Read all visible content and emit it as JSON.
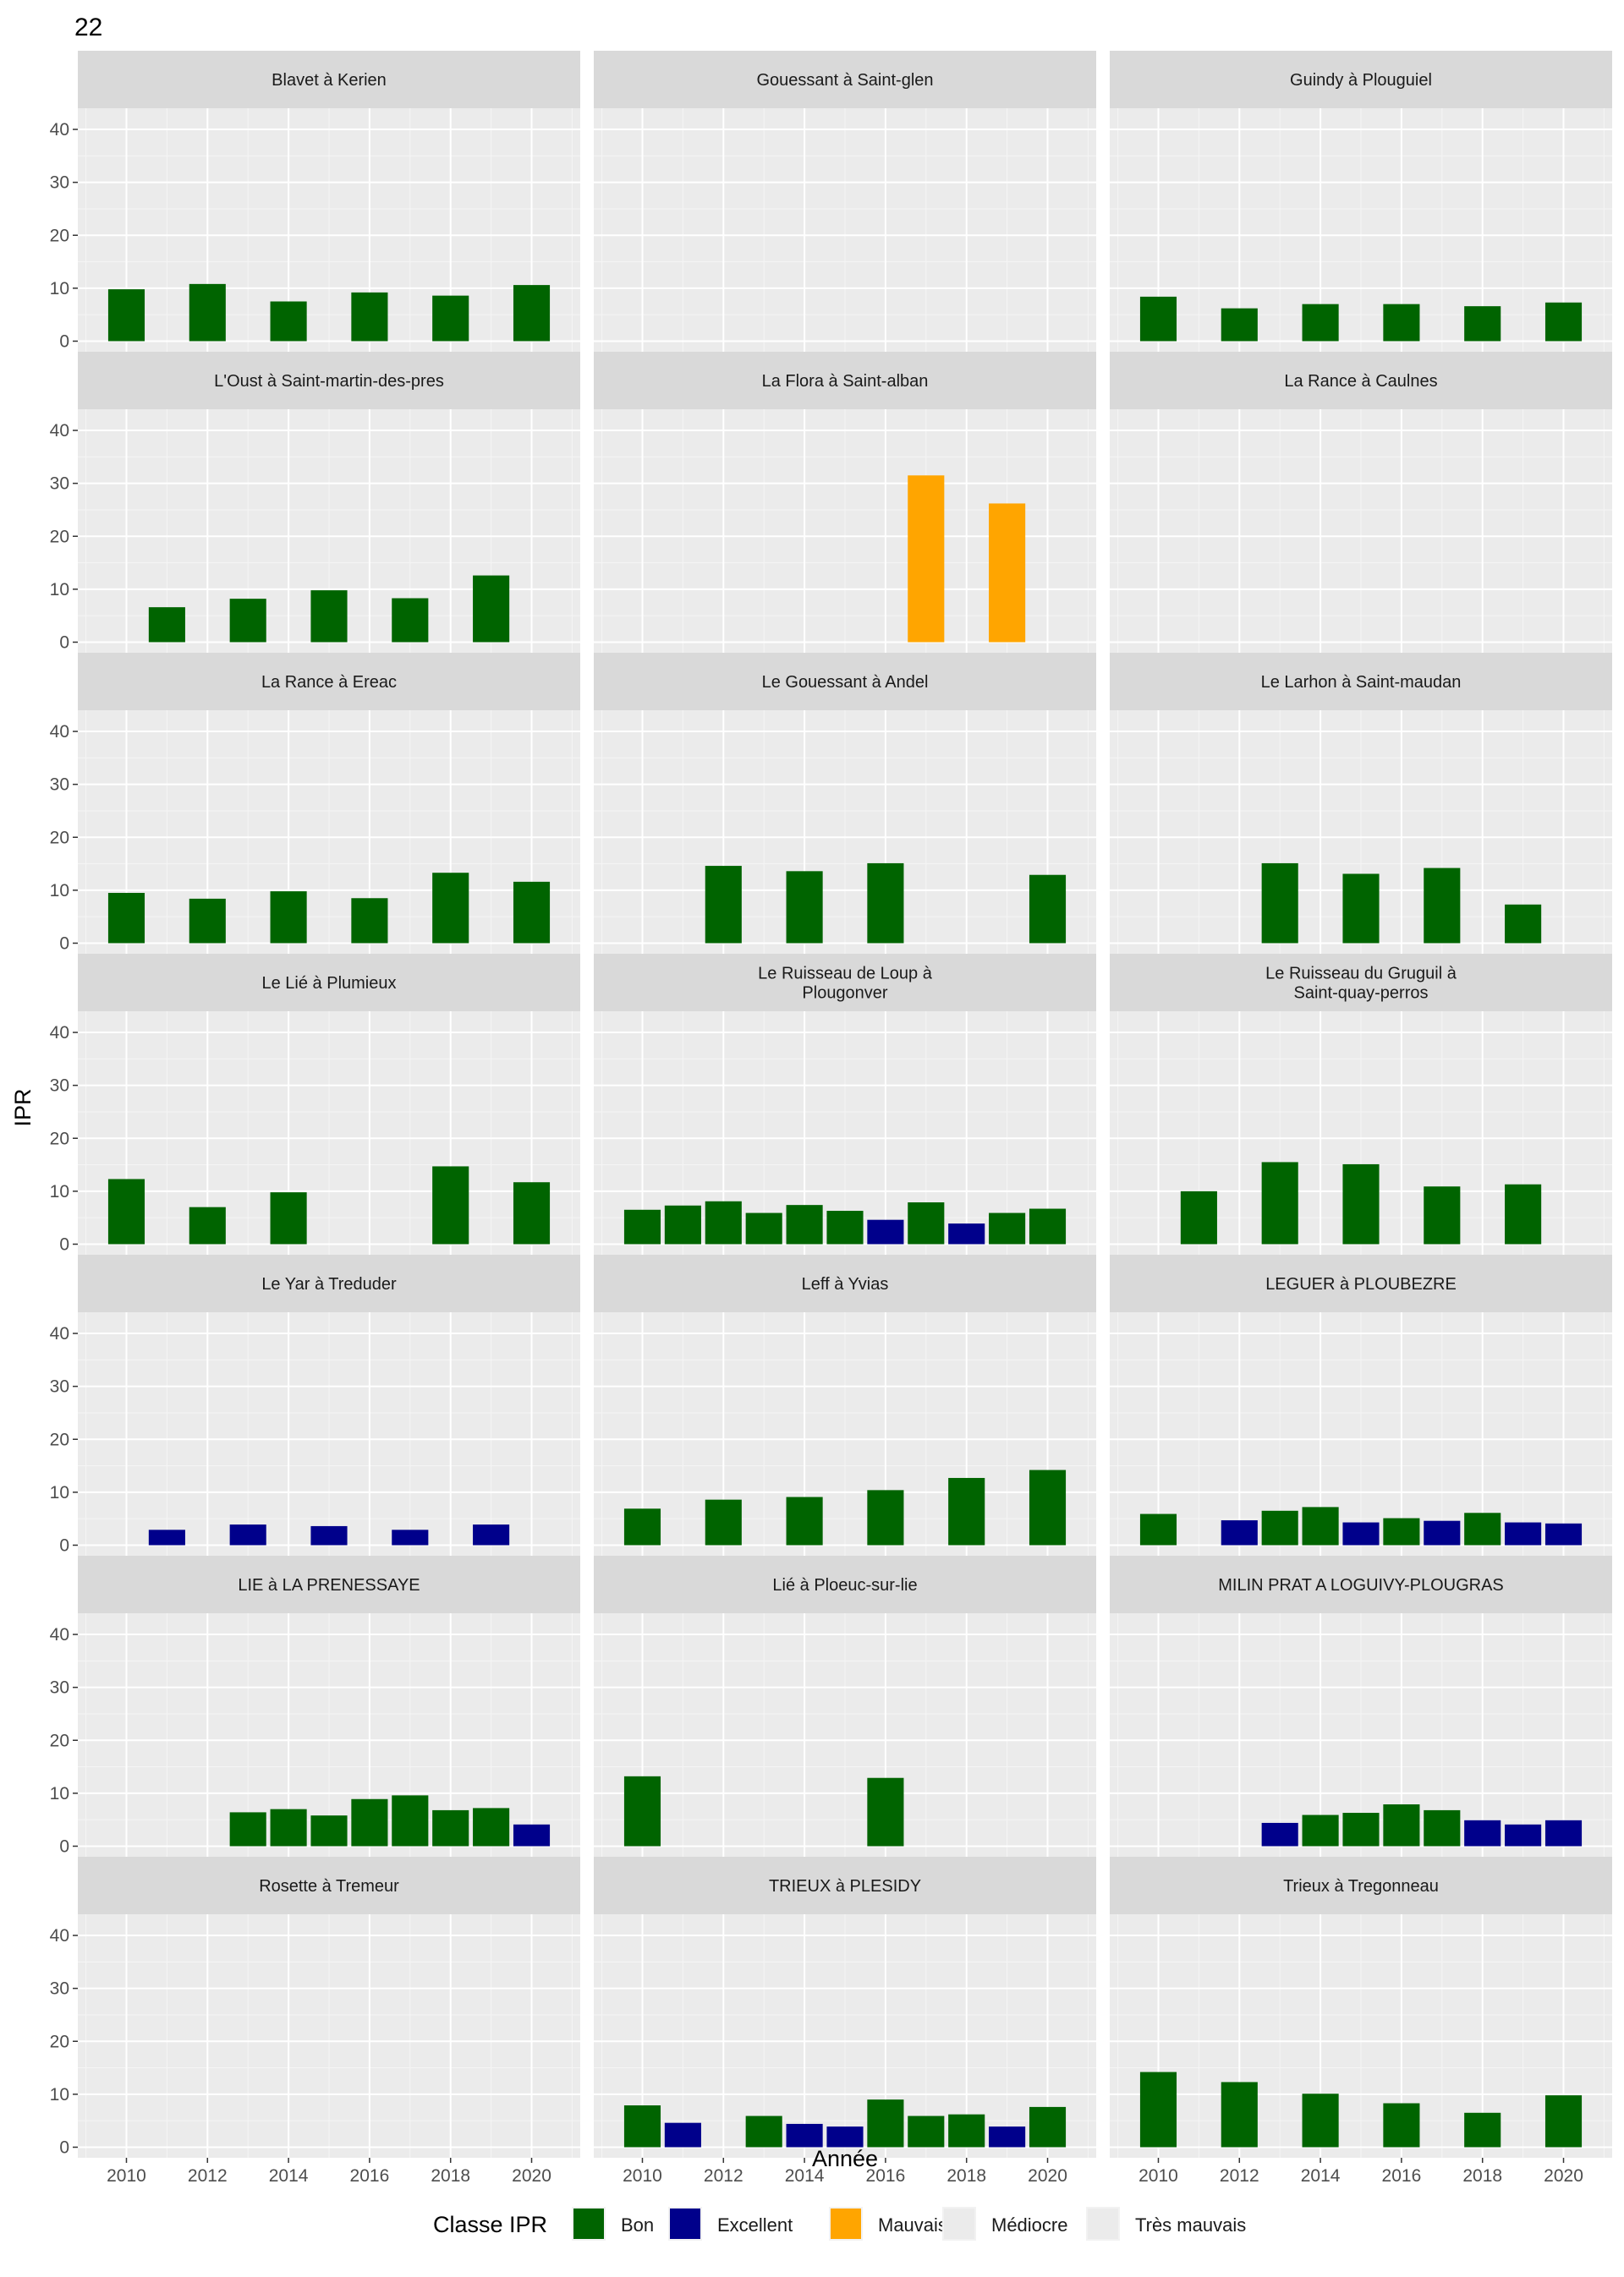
{
  "chart_data": {
    "type": "bar",
    "title": "22",
    "xlabel": "Année",
    "ylabel": "IPR",
    "ylim": [
      -2,
      44
    ],
    "xlim": [
      2008.8,
      2021.2
    ],
    "yticks": [
      0,
      10,
      20,
      30,
      40
    ],
    "xticks": [
      2010,
      2012,
      2014,
      2016,
      2018,
      2020
    ],
    "grid": true,
    "legend": {
      "title": "Classe IPR",
      "position": "bottom",
      "entries": [
        {
          "key": "Bon",
          "label": "Bon",
          "color": "#006400"
        },
        {
          "key": "Excellent",
          "label": "Excellent",
          "color": "#00008B"
        },
        {
          "key": "Mauvais",
          "label": "Mauvais",
          "color": "#FFA500"
        },
        {
          "key": "Mediocre",
          "label": "Médiocre",
          "color": "#EBEBEB"
        },
        {
          "key": "TresMauvais",
          "label": "Très mauvais",
          "color": "#EBEBEB"
        }
      ]
    },
    "panels": [
      {
        "title": [
          "Blavet à Kerien"
        ],
        "bars": [
          {
            "x": 2010,
            "y": 9.8,
            "c": "Bon"
          },
          {
            "x": 2012,
            "y": 10.8,
            "c": "Bon"
          },
          {
            "x": 2014,
            "y": 7.5,
            "c": "Bon"
          },
          {
            "x": 2016,
            "y": 9.2,
            "c": "Bon"
          },
          {
            "x": 2018,
            "y": 8.6,
            "c": "Bon"
          },
          {
            "x": 2020,
            "y": 10.6,
            "c": "Bon"
          }
        ]
      },
      {
        "title": [
          "Gouessant à Saint-glen"
        ],
        "bars": []
      },
      {
        "title": [
          "Guindy à Plouguiel"
        ],
        "bars": [
          {
            "x": 2010,
            "y": 8.4,
            "c": "Bon"
          },
          {
            "x": 2012,
            "y": 6.2,
            "c": "Bon"
          },
          {
            "x": 2014,
            "y": 7.0,
            "c": "Bon"
          },
          {
            "x": 2016,
            "y": 7.0,
            "c": "Bon"
          },
          {
            "x": 2018,
            "y": 6.6,
            "c": "Bon"
          },
          {
            "x": 2020,
            "y": 7.3,
            "c": "Bon"
          }
        ]
      },
      {
        "title": [
          "L'Oust à Saint-martin-des-pres"
        ],
        "bars": [
          {
            "x": 2011,
            "y": 6.6,
            "c": "Bon"
          },
          {
            "x": 2013,
            "y": 8.2,
            "c": "Bon"
          },
          {
            "x": 2015,
            "y": 9.8,
            "c": "Bon"
          },
          {
            "x": 2017,
            "y": 8.3,
            "c": "Bon"
          },
          {
            "x": 2019,
            "y": 12.6,
            "c": "Bon"
          }
        ]
      },
      {
        "title": [
          "La Flora à Saint-alban"
        ],
        "bars": [
          {
            "x": 2017,
            "y": 31.5,
            "c": "Mauvais"
          },
          {
            "x": 2019,
            "y": 26.2,
            "c": "Mauvais"
          }
        ]
      },
      {
        "title": [
          "La Rance à Caulnes"
        ],
        "bars": []
      },
      {
        "title": [
          "La Rance à Ereac"
        ],
        "bars": [
          {
            "x": 2010,
            "y": 9.5,
            "c": "Bon"
          },
          {
            "x": 2012,
            "y": 8.4,
            "c": "Bon"
          },
          {
            "x": 2014,
            "y": 9.8,
            "c": "Bon"
          },
          {
            "x": 2016,
            "y": 8.5,
            "c": "Bon"
          },
          {
            "x": 2018,
            "y": 13.3,
            "c": "Bon"
          },
          {
            "x": 2020,
            "y": 11.6,
            "c": "Bon"
          }
        ]
      },
      {
        "title": [
          "Le Gouessant à Andel"
        ],
        "bars": [
          {
            "x": 2012,
            "y": 14.6,
            "c": "Bon"
          },
          {
            "x": 2014,
            "y": 13.6,
            "c": "Bon"
          },
          {
            "x": 2016,
            "y": 15.1,
            "c": "Bon"
          },
          {
            "x": 2020,
            "y": 12.9,
            "c": "Bon"
          }
        ]
      },
      {
        "title": [
          "Le Larhon à Saint-maudan"
        ],
        "bars": [
          {
            "x": 2013,
            "y": 15.1,
            "c": "Bon"
          },
          {
            "x": 2015,
            "y": 13.1,
            "c": "Bon"
          },
          {
            "x": 2017,
            "y": 14.2,
            "c": "Bon"
          },
          {
            "x": 2019,
            "y": 7.3,
            "c": "Bon"
          }
        ]
      },
      {
        "title": [
          "Le Lié à Plumieux"
        ],
        "bars": [
          {
            "x": 2010,
            "y": 12.3,
            "c": "Bon"
          },
          {
            "x": 2012,
            "y": 7.0,
            "c": "Bon"
          },
          {
            "x": 2014,
            "y": 9.8,
            "c": "Bon"
          },
          {
            "x": 2018,
            "y": 14.7,
            "c": "Bon"
          },
          {
            "x": 2020,
            "y": 11.7,
            "c": "Bon"
          }
        ]
      },
      {
        "title": [
          "Le Ruisseau de Loup à",
          "Plougonver"
        ],
        "bars": [
          {
            "x": 2010,
            "y": 6.5,
            "c": "Bon"
          },
          {
            "x": 2011,
            "y": 7.3,
            "c": "Bon"
          },
          {
            "x": 2012,
            "y": 8.1,
            "c": "Bon"
          },
          {
            "x": 2013,
            "y": 5.9,
            "c": "Bon"
          },
          {
            "x": 2014,
            "y": 7.4,
            "c": "Bon"
          },
          {
            "x": 2015,
            "y": 6.3,
            "c": "Bon"
          },
          {
            "x": 2016,
            "y": 4.6,
            "c": "Excellent"
          },
          {
            "x": 2017,
            "y": 7.9,
            "c": "Bon"
          },
          {
            "x": 2018,
            "y": 3.9,
            "c": "Excellent"
          },
          {
            "x": 2019,
            "y": 5.9,
            "c": "Bon"
          },
          {
            "x": 2020,
            "y": 6.7,
            "c": "Bon"
          }
        ]
      },
      {
        "title": [
          "Le Ruisseau du Gruguil à",
          "Saint-quay-perros"
        ],
        "bars": [
          {
            "x": 2011,
            "y": 10.0,
            "c": "Bon"
          },
          {
            "x": 2013,
            "y": 15.5,
            "c": "Bon"
          },
          {
            "x": 2015,
            "y": 15.1,
            "c": "Bon"
          },
          {
            "x": 2017,
            "y": 10.9,
            "c": "Bon"
          },
          {
            "x": 2019,
            "y": 11.3,
            "c": "Bon"
          }
        ]
      },
      {
        "title": [
          "Le Yar à Treduder"
        ],
        "bars": [
          {
            "x": 2011,
            "y": 2.9,
            "c": "Excellent"
          },
          {
            "x": 2013,
            "y": 3.9,
            "c": "Excellent"
          },
          {
            "x": 2015,
            "y": 3.6,
            "c": "Excellent"
          },
          {
            "x": 2017,
            "y": 2.9,
            "c": "Excellent"
          },
          {
            "x": 2019,
            "y": 3.9,
            "c": "Excellent"
          }
        ]
      },
      {
        "title": [
          "Leff à Yvias"
        ],
        "bars": [
          {
            "x": 2010,
            "y": 6.9,
            "c": "Bon"
          },
          {
            "x": 2012,
            "y": 8.6,
            "c": "Bon"
          },
          {
            "x": 2014,
            "y": 9.1,
            "c": "Bon"
          },
          {
            "x": 2016,
            "y": 10.4,
            "c": "Bon"
          },
          {
            "x": 2018,
            "y": 12.7,
            "c": "Bon"
          },
          {
            "x": 2020,
            "y": 14.2,
            "c": "Bon"
          }
        ]
      },
      {
        "title": [
          "LEGUER à PLOUBEZRE"
        ],
        "bars": [
          {
            "x": 2010,
            "y": 5.9,
            "c": "Bon"
          },
          {
            "x": 2012,
            "y": 4.7,
            "c": "Excellent"
          },
          {
            "x": 2013,
            "y": 6.5,
            "c": "Bon"
          },
          {
            "x": 2014,
            "y": 7.2,
            "c": "Bon"
          },
          {
            "x": 2015,
            "y": 4.3,
            "c": "Excellent"
          },
          {
            "x": 2016,
            "y": 5.1,
            "c": "Bon"
          },
          {
            "x": 2017,
            "y": 4.6,
            "c": "Excellent"
          },
          {
            "x": 2018,
            "y": 6.1,
            "c": "Bon"
          },
          {
            "x": 2019,
            "y": 4.3,
            "c": "Excellent"
          },
          {
            "x": 2020,
            "y": 4.1,
            "c": "Excellent"
          }
        ]
      },
      {
        "title": [
          "LIE à LA PRENESSAYE"
        ],
        "bars": [
          {
            "x": 2013,
            "y": 6.4,
            "c": "Bon"
          },
          {
            "x": 2014,
            "y": 7.0,
            "c": "Bon"
          },
          {
            "x": 2015,
            "y": 5.8,
            "c": "Bon"
          },
          {
            "x": 2016,
            "y": 8.9,
            "c": "Bon"
          },
          {
            "x": 2017,
            "y": 9.6,
            "c": "Bon"
          },
          {
            "x": 2018,
            "y": 6.8,
            "c": "Bon"
          },
          {
            "x": 2019,
            "y": 7.2,
            "c": "Bon"
          },
          {
            "x": 2020,
            "y": 4.1,
            "c": "Excellent"
          }
        ]
      },
      {
        "title": [
          "Lié à Ploeuc-sur-lie"
        ],
        "bars": [
          {
            "x": 2010,
            "y": 13.2,
            "c": "Bon"
          },
          {
            "x": 2016,
            "y": 12.9,
            "c": "Bon"
          }
        ]
      },
      {
        "title": [
          "MILIN PRAT A LOGUIVY-PLOUGRAS"
        ],
        "bars": [
          {
            "x": 2013,
            "y": 4.4,
            "c": "Excellent"
          },
          {
            "x": 2014,
            "y": 5.9,
            "c": "Bon"
          },
          {
            "x": 2015,
            "y": 6.3,
            "c": "Bon"
          },
          {
            "x": 2016,
            "y": 7.9,
            "c": "Bon"
          },
          {
            "x": 2017,
            "y": 6.8,
            "c": "Bon"
          },
          {
            "x": 2018,
            "y": 4.9,
            "c": "Excellent"
          },
          {
            "x": 2019,
            "y": 4.1,
            "c": "Excellent"
          },
          {
            "x": 2020,
            "y": 4.9,
            "c": "Excellent"
          }
        ]
      },
      {
        "title": [
          "Rosette à Tremeur"
        ],
        "bars": []
      },
      {
        "title": [
          "TRIEUX à PLESIDY"
        ],
        "bars": [
          {
            "x": 2010,
            "y": 7.9,
            "c": "Bon"
          },
          {
            "x": 2011,
            "y": 4.6,
            "c": "Excellent"
          },
          {
            "x": 2013,
            "y": 5.9,
            "c": "Bon"
          },
          {
            "x": 2014,
            "y": 4.4,
            "c": "Excellent"
          },
          {
            "x": 2015,
            "y": 3.9,
            "c": "Excellent"
          },
          {
            "x": 2016,
            "y": 9.0,
            "c": "Bon"
          },
          {
            "x": 2017,
            "y": 5.9,
            "c": "Bon"
          },
          {
            "x": 2018,
            "y": 6.2,
            "c": "Bon"
          },
          {
            "x": 2019,
            "y": 3.9,
            "c": "Excellent"
          },
          {
            "x": 2020,
            "y": 7.6,
            "c": "Bon"
          }
        ]
      },
      {
        "title": [
          "Trieux à Tregonneau"
        ],
        "bars": [
          {
            "x": 2010,
            "y": 14.2,
            "c": "Bon"
          },
          {
            "x": 2012,
            "y": 12.3,
            "c": "Bon"
          },
          {
            "x": 2014,
            "y": 10.1,
            "c": "Bon"
          },
          {
            "x": 2016,
            "y": 8.3,
            "c": "Bon"
          },
          {
            "x": 2018,
            "y": 6.5,
            "c": "Bon"
          },
          {
            "x": 2020,
            "y": 9.8,
            "c": "Bon"
          }
        ]
      }
    ]
  }
}
